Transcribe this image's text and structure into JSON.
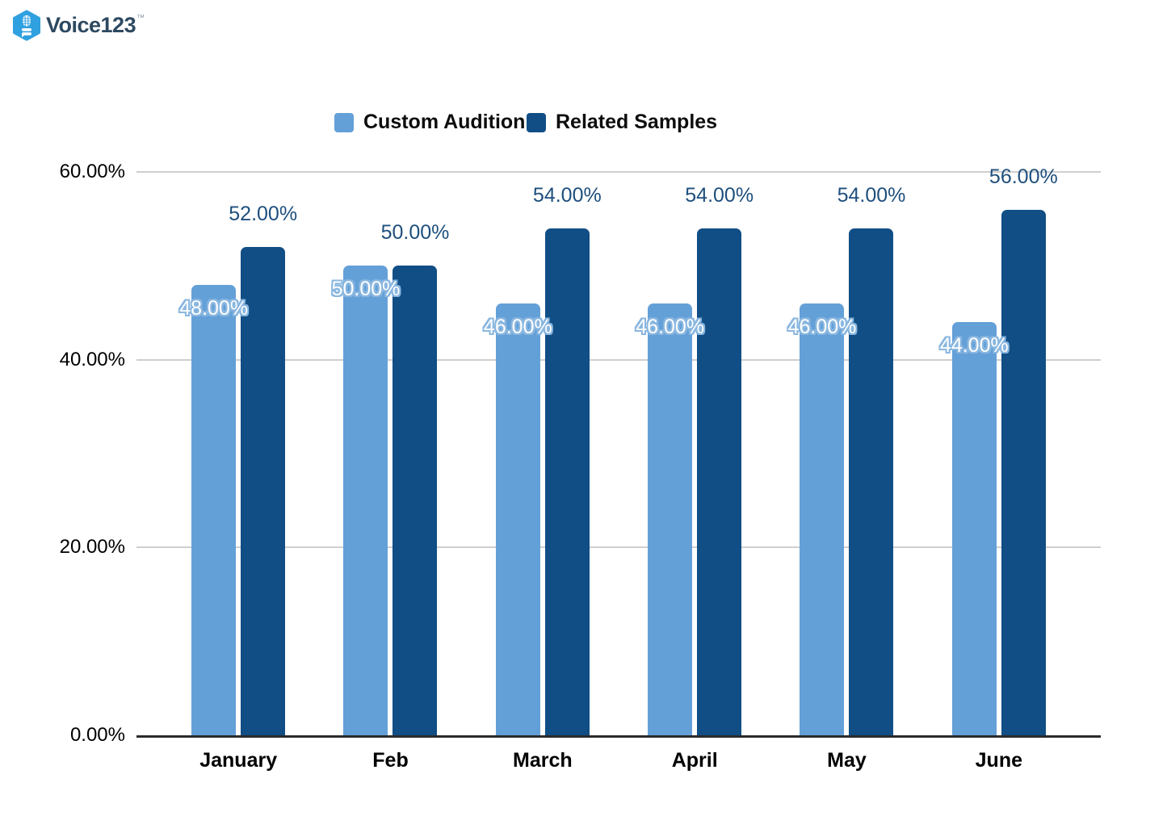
{
  "logo": {
    "text": "Voice123",
    "tm": "™"
  },
  "legend": {
    "items": [
      {
        "label": "Custom Audition"
      },
      {
        "label": "Related Samples"
      }
    ]
  },
  "chart_data": {
    "type": "bar",
    "categories": [
      "January",
      "Feb",
      "March",
      "April",
      "May",
      "June"
    ],
    "series": [
      {
        "name": "Custom Audition",
        "color": "#64a0d8",
        "values": [
          48,
          50,
          46,
          46,
          46,
          44
        ],
        "labels": [
          "48.00%",
          "50.00%",
          "46.00%",
          "46.00%",
          "46.00%",
          "44.00%"
        ],
        "label_style": "white-with-halo-on-bar-top"
      },
      {
        "name": "Related Samples",
        "color": "#114e85",
        "values": [
          52,
          50,
          54,
          54,
          54,
          56
        ],
        "labels": [
          "52.00%",
          "50.00%",
          "54.00%",
          "54.00%",
          "54.00%",
          "56.00%"
        ],
        "label_style": "navy-above-bar"
      }
    ],
    "y_ticks": [
      {
        "value": 0,
        "label": "0.00%"
      },
      {
        "value": 20,
        "label": "20.00%"
      },
      {
        "value": 40,
        "label": "40.00%"
      },
      {
        "value": 60,
        "label": "60.00%"
      }
    ],
    "ylim": [
      0,
      60
    ],
    "grid": true,
    "legend_position": "top",
    "xlabel": "",
    "ylabel": ""
  },
  "colors": {
    "bar_light": "#64a0d8",
    "bar_dark": "#114e85",
    "dark_value_label": "#1e4f7d",
    "light_value_halo": "#8ab7e0",
    "gridline": "#cfcfcf",
    "axis_line": "#2b2b2b",
    "axis_text": "#000000",
    "legend_text": "#0d0d0d",
    "logo_blue": "#2fa0e0",
    "logo_text": "#2d4961"
  }
}
